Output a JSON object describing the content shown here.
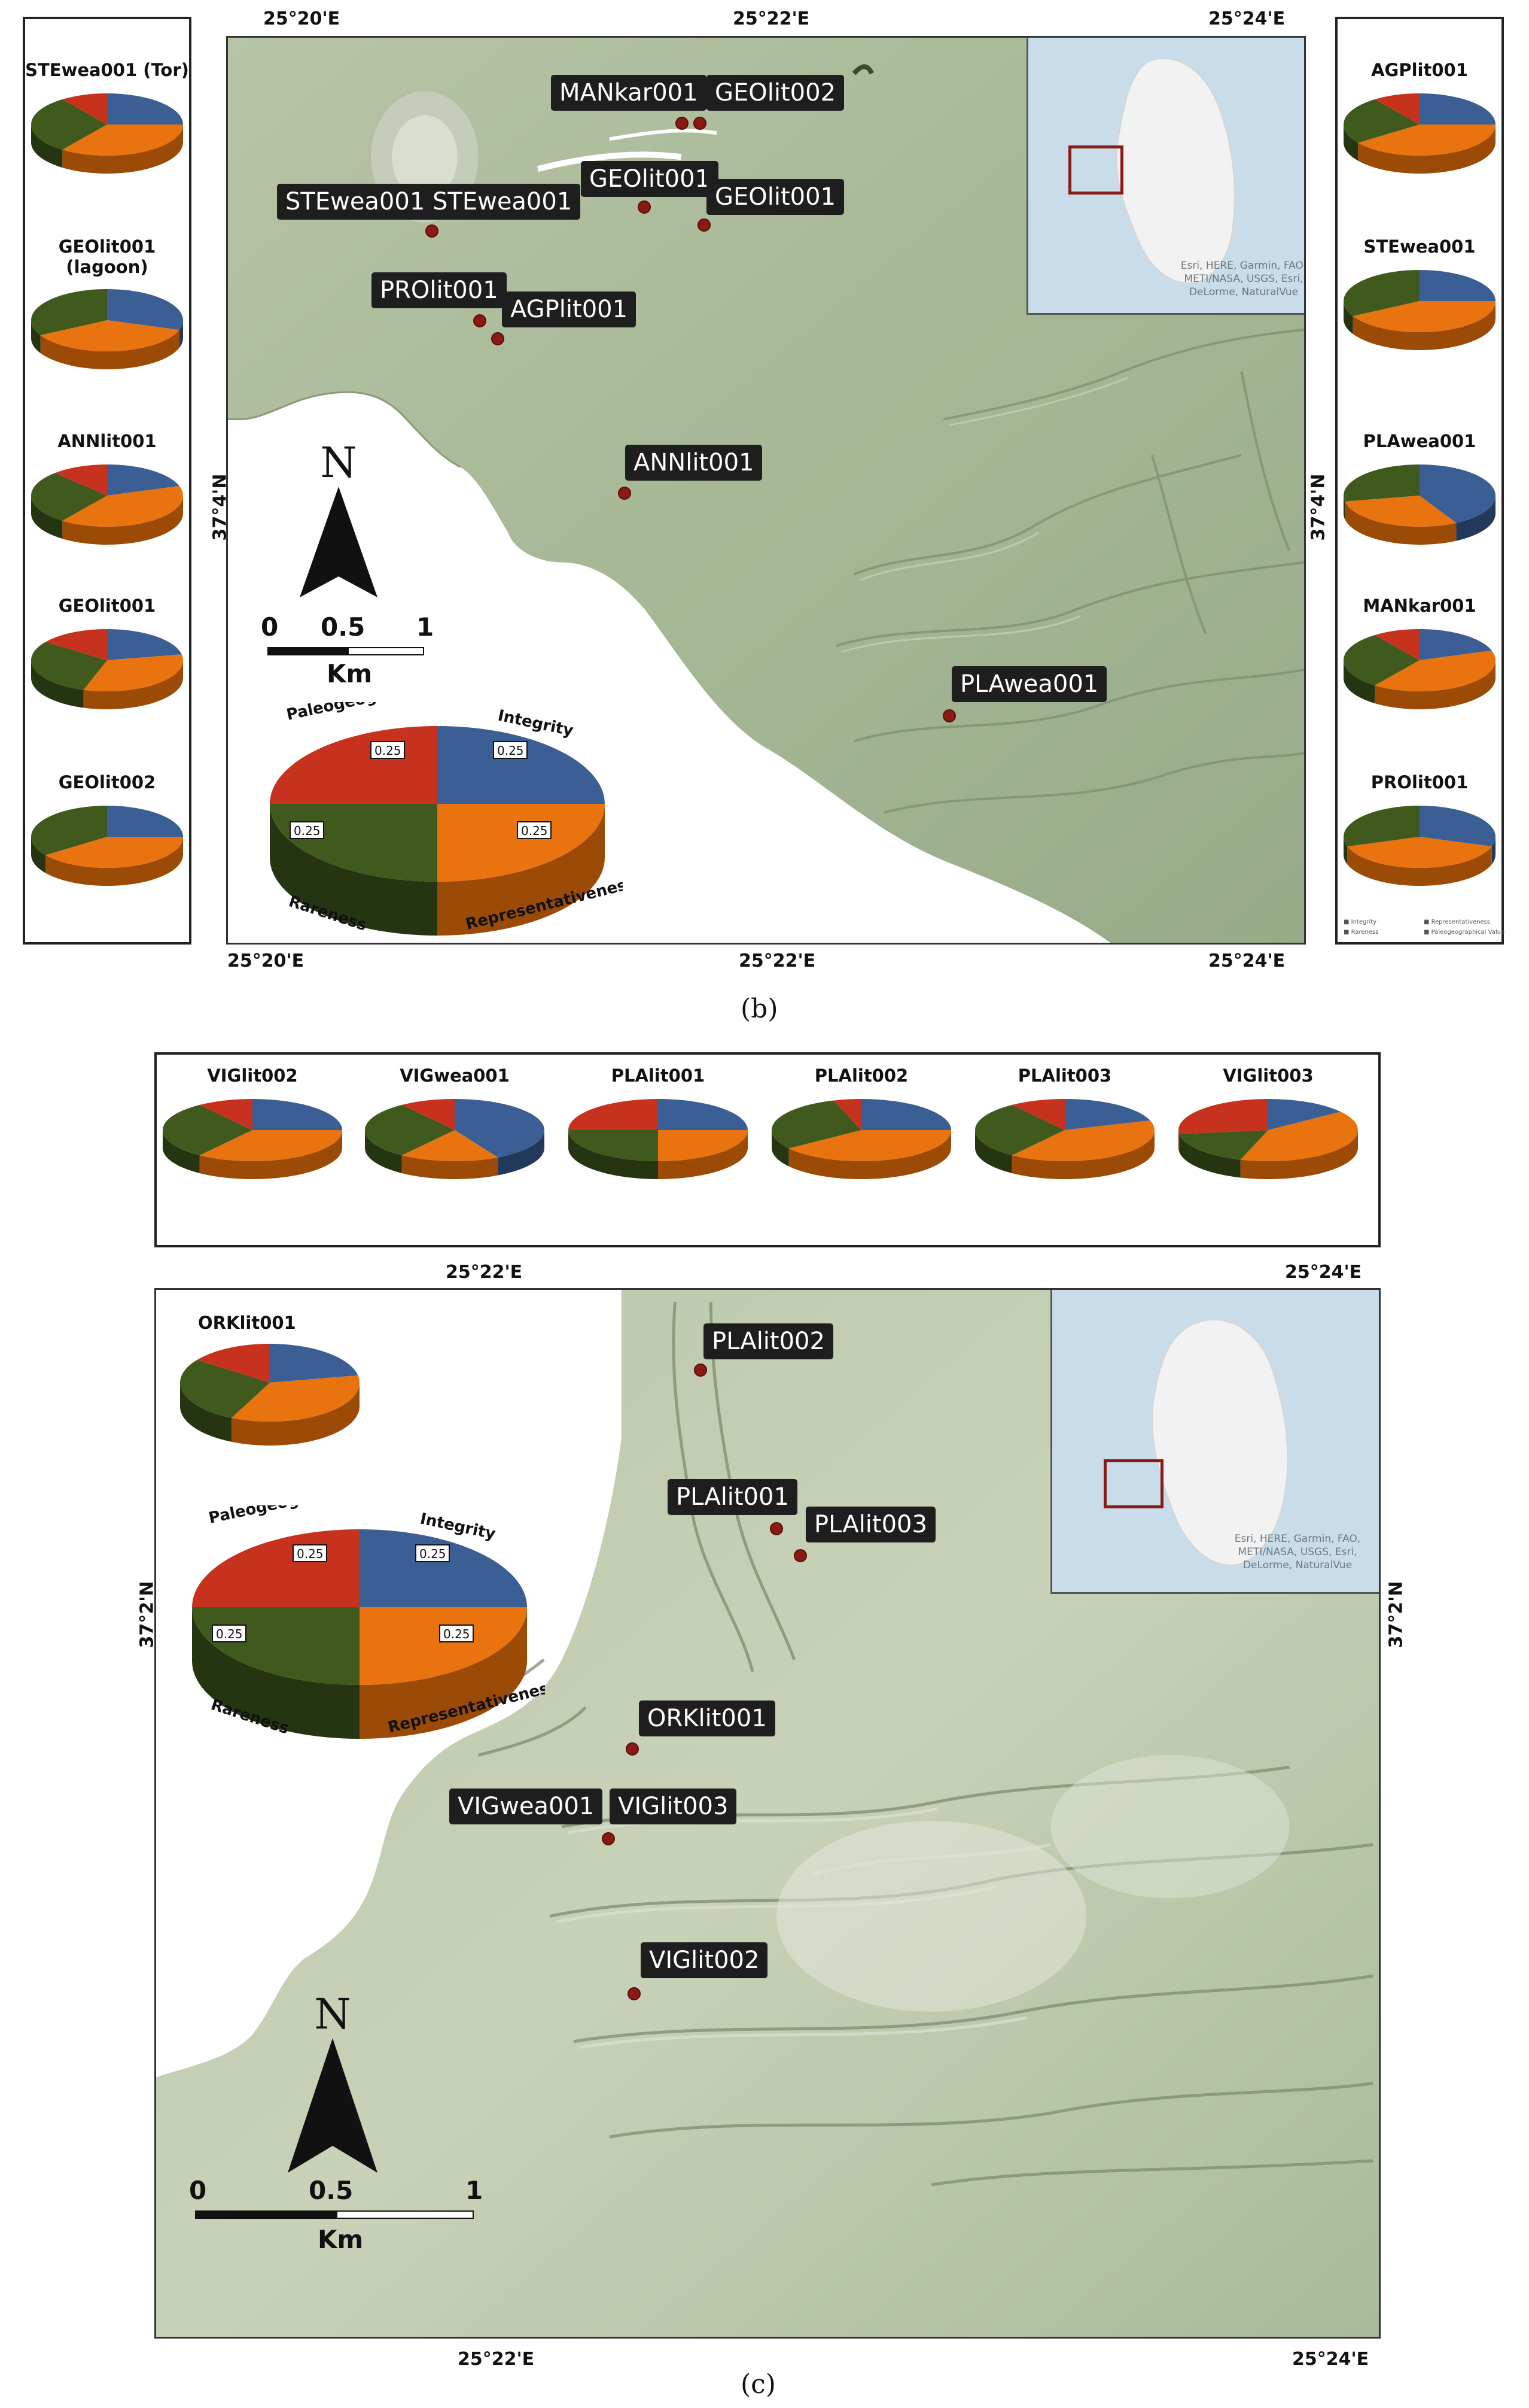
{
  "panel_b": {
    "caption": "(b)",
    "coords": {
      "top_left": "25°20'E",
      "top_mid": "25°22'E",
      "top_right": "25°24'E",
      "bottom_left": "25°20'E",
      "bottom_mid": "25°22'E",
      "bottom_right": "25°24'E",
      "left": "37°4'N",
      "right": "37°4'N"
    },
    "site_labels": [
      "MANkar001",
      "GEOlit002",
      "STEwea001",
      "STEwea001",
      "GEOlit001",
      "GEOlit001",
      "PROlit001",
      "AGPlit001",
      "ANNlit001",
      "PLAwea001"
    ],
    "left_pies": [
      {
        "title": "STEwea001 (Tor)",
        "values": [
          0.25,
          0.35,
          0.3,
          0.1
        ]
      },
      {
        "title": "GEOlit001\n(lagoon)",
        "values": [
          0.3,
          0.37,
          0.33,
          0.0
        ]
      },
      {
        "title": "ANNlit001",
        "values": [
          0.2,
          0.4,
          0.28,
          0.12
        ]
      },
      {
        "title": "GEOlit001",
        "values": [
          0.22,
          0.33,
          0.3,
          0.15
        ]
      },
      {
        "title": "GEOlit002",
        "values": [
          0.25,
          0.4,
          0.35,
          0.0
        ]
      }
    ],
    "right_pies": [
      {
        "title": "AGPlit001",
        "values": [
          0.25,
          0.4,
          0.25,
          0.1
        ]
      },
      {
        "title": "STEwea001",
        "values": [
          0.25,
          0.42,
          0.33,
          0.0
        ]
      },
      {
        "title": "PLAwea001",
        "values": [
          0.42,
          0.3,
          0.28,
          0.0
        ]
      },
      {
        "title": "MANkar001",
        "values": [
          0.2,
          0.4,
          0.3,
          0.1
        ]
      },
      {
        "title": "PROlit001",
        "values": [
          0.3,
          0.4,
          0.3,
          0.0
        ]
      }
    ],
    "legend": {
      "paleo": "Paleogeographical value",
      "integrity": "Integrity",
      "rareness": "Rareness",
      "repres": "Representativeness",
      "v1": "0.25",
      "v2": "0.25",
      "v3": "0.25",
      "v4": "0.25"
    },
    "tiny_legend": [
      "Integrity",
      "Representativeness",
      "Rareness",
      "Paleogeographical Value"
    ],
    "inset_attrib": "Esri, HERE, Garmin, FAO,\nMETI/NASA, USGS, Esri,\nDeLorme, NaturalVue",
    "north": "N",
    "scale": {
      "s0": "0",
      "s1": "0.5",
      "s2": "1",
      "unit": "Km"
    }
  },
  "panel_c": {
    "caption": "(c)",
    "coords": {
      "top_mid": "25°22'E",
      "top_right": "25°24'E",
      "bottom_mid": "25°22'E",
      "bottom_right": "25°24'E",
      "left": "37°2'N",
      "right": "37°2'N"
    },
    "top_pies": [
      {
        "title": "VIGlit002",
        "values": [
          0.25,
          0.35,
          0.3,
          0.1
        ]
      },
      {
        "title": "VIGwea001",
        "values": [
          0.42,
          0.18,
          0.3,
          0.1
        ]
      },
      {
        "title": "PLAlit001",
        "values": [
          0.25,
          0.25,
          0.25,
          0.25
        ]
      },
      {
        "title": "PLAlit002",
        "values": [
          0.25,
          0.4,
          0.3,
          0.05
        ]
      },
      {
        "title": "PLAlit003",
        "values": [
          0.2,
          0.4,
          0.3,
          0.1
        ]
      },
      {
        "title": "VIGlit003",
        "values": [
          0.15,
          0.4,
          0.18,
          0.27
        ]
      }
    ],
    "ork_pie": {
      "title": "ORKlit001",
      "values": [
        0.22,
        0.35,
        0.28,
        0.15
      ]
    },
    "site_labels": [
      "PLAlit002",
      "PLAlit001",
      "PLAlit003",
      "ORKlit001",
      "VIGwea001",
      "VIGlit003",
      "VIGlit002"
    ],
    "legend": {
      "paleo": "Paleogeographical value",
      "integrity": "Integrity",
      "rareness": "Rareness",
      "repres": "Representativeness",
      "v1": "0.25",
      "v2": "0.25",
      "v3": "0.25",
      "v4": "0.25"
    },
    "inset_attrib": "Esri, HERE, Garmin, FAO,\nMETI/NASA, USGS, Esri,\nDeLorme, NaturalVue",
    "north": "N",
    "scale": {
      "s0": "0",
      "s1": "0.5",
      "s2": "1",
      "unit": "Km"
    }
  },
  "colors": {
    "integrity": "#3b5e95",
    "representativeness": "#e8730f",
    "rareness": "#3f5a1c",
    "paleo": "#c7321e",
    "land": "#a9b99a",
    "sea": "#ffffff",
    "site": "#8b1a14"
  }
}
